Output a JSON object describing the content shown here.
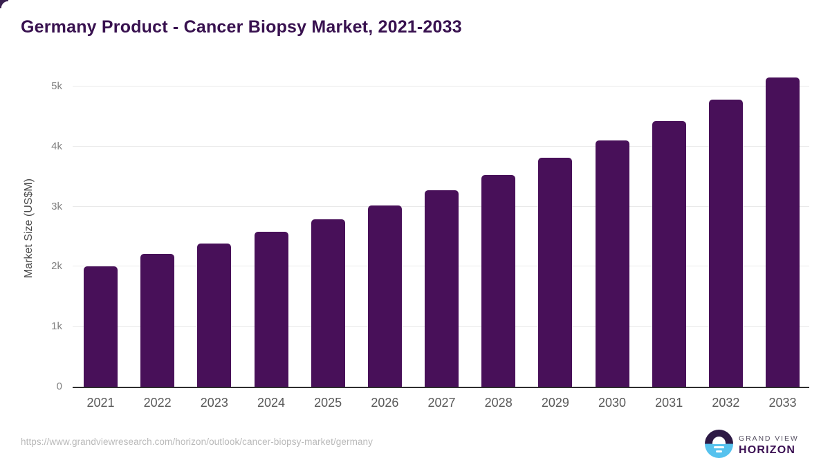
{
  "page": {
    "source_url": "https://www.grandviewresearch.com/horizon/outlook/cancer-biopsy-market/germany"
  },
  "logo": {
    "name": "Grand View Horizon",
    "line1": "GRAND VIEW",
    "line2": "HORIZON"
  },
  "chart_data": {
    "type": "bar",
    "title": "Germany Product - Cancer Biopsy Market, 2021-2033",
    "xlabel": "",
    "ylabel": "Market Size (US$M)",
    "unit": "US$M",
    "categories": [
      "2021",
      "2022",
      "2023",
      "2024",
      "2025",
      "2026",
      "2027",
      "2028",
      "2029",
      "2030",
      "2031",
      "2032",
      "2033"
    ],
    "values": [
      2000,
      2210,
      2390,
      2580,
      2790,
      3020,
      3270,
      3530,
      3810,
      4100,
      4420,
      4780,
      5150
    ],
    "ylim": [
      0,
      5300
    ],
    "yticks": [
      {
        "value": 0,
        "label": "0"
      },
      {
        "value": 1000,
        "label": "1k"
      },
      {
        "value": 2000,
        "label": "2k"
      },
      {
        "value": 3000,
        "label": "3k"
      },
      {
        "value": 4000,
        "label": "4k"
      },
      {
        "value": 5000,
        "label": "5k"
      }
    ],
    "grid": "horizontal",
    "legend": "none",
    "bar_color": "#481059"
  },
  "colors": {
    "bar": "#481059",
    "title": "#38114f",
    "axis_line": "#2e2e2e",
    "gridline": "#e9e9e9",
    "x_tick_text": "#595959",
    "y_tick_text": "#818181",
    "y_axis_label": "#4a4a4a",
    "source_url_text": "#b9b9b9",
    "logo_navy": "#2d1945",
    "logo_blue": "#56c2ee",
    "logo_gray_text": "#575163",
    "logo_purple_text": "#3b1053"
  }
}
